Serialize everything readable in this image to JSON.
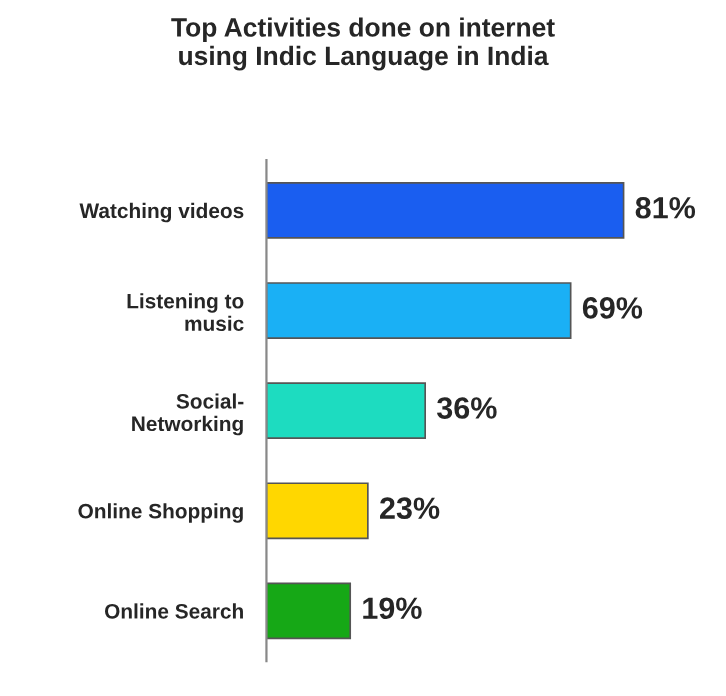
{
  "chart_data": {
    "type": "bar",
    "orientation": "horizontal",
    "title": "Top Activities done on internet\nusing Indic Language in India",
    "categories": [
      "Watching videos",
      "Listening to\nmusic",
      "Social-\nNetworking",
      "Online Shopping",
      "Online Search"
    ],
    "values": [
      81,
      69,
      36,
      23,
      19
    ],
    "colors": [
      "#1a5ef0",
      "#1ab0f5",
      "#1ddcc0",
      "#ffd700",
      "#16a816"
    ],
    "value_labels": [
      "81%",
      "69%",
      "36%",
      "23%",
      "19%"
    ],
    "grid": false
  }
}
